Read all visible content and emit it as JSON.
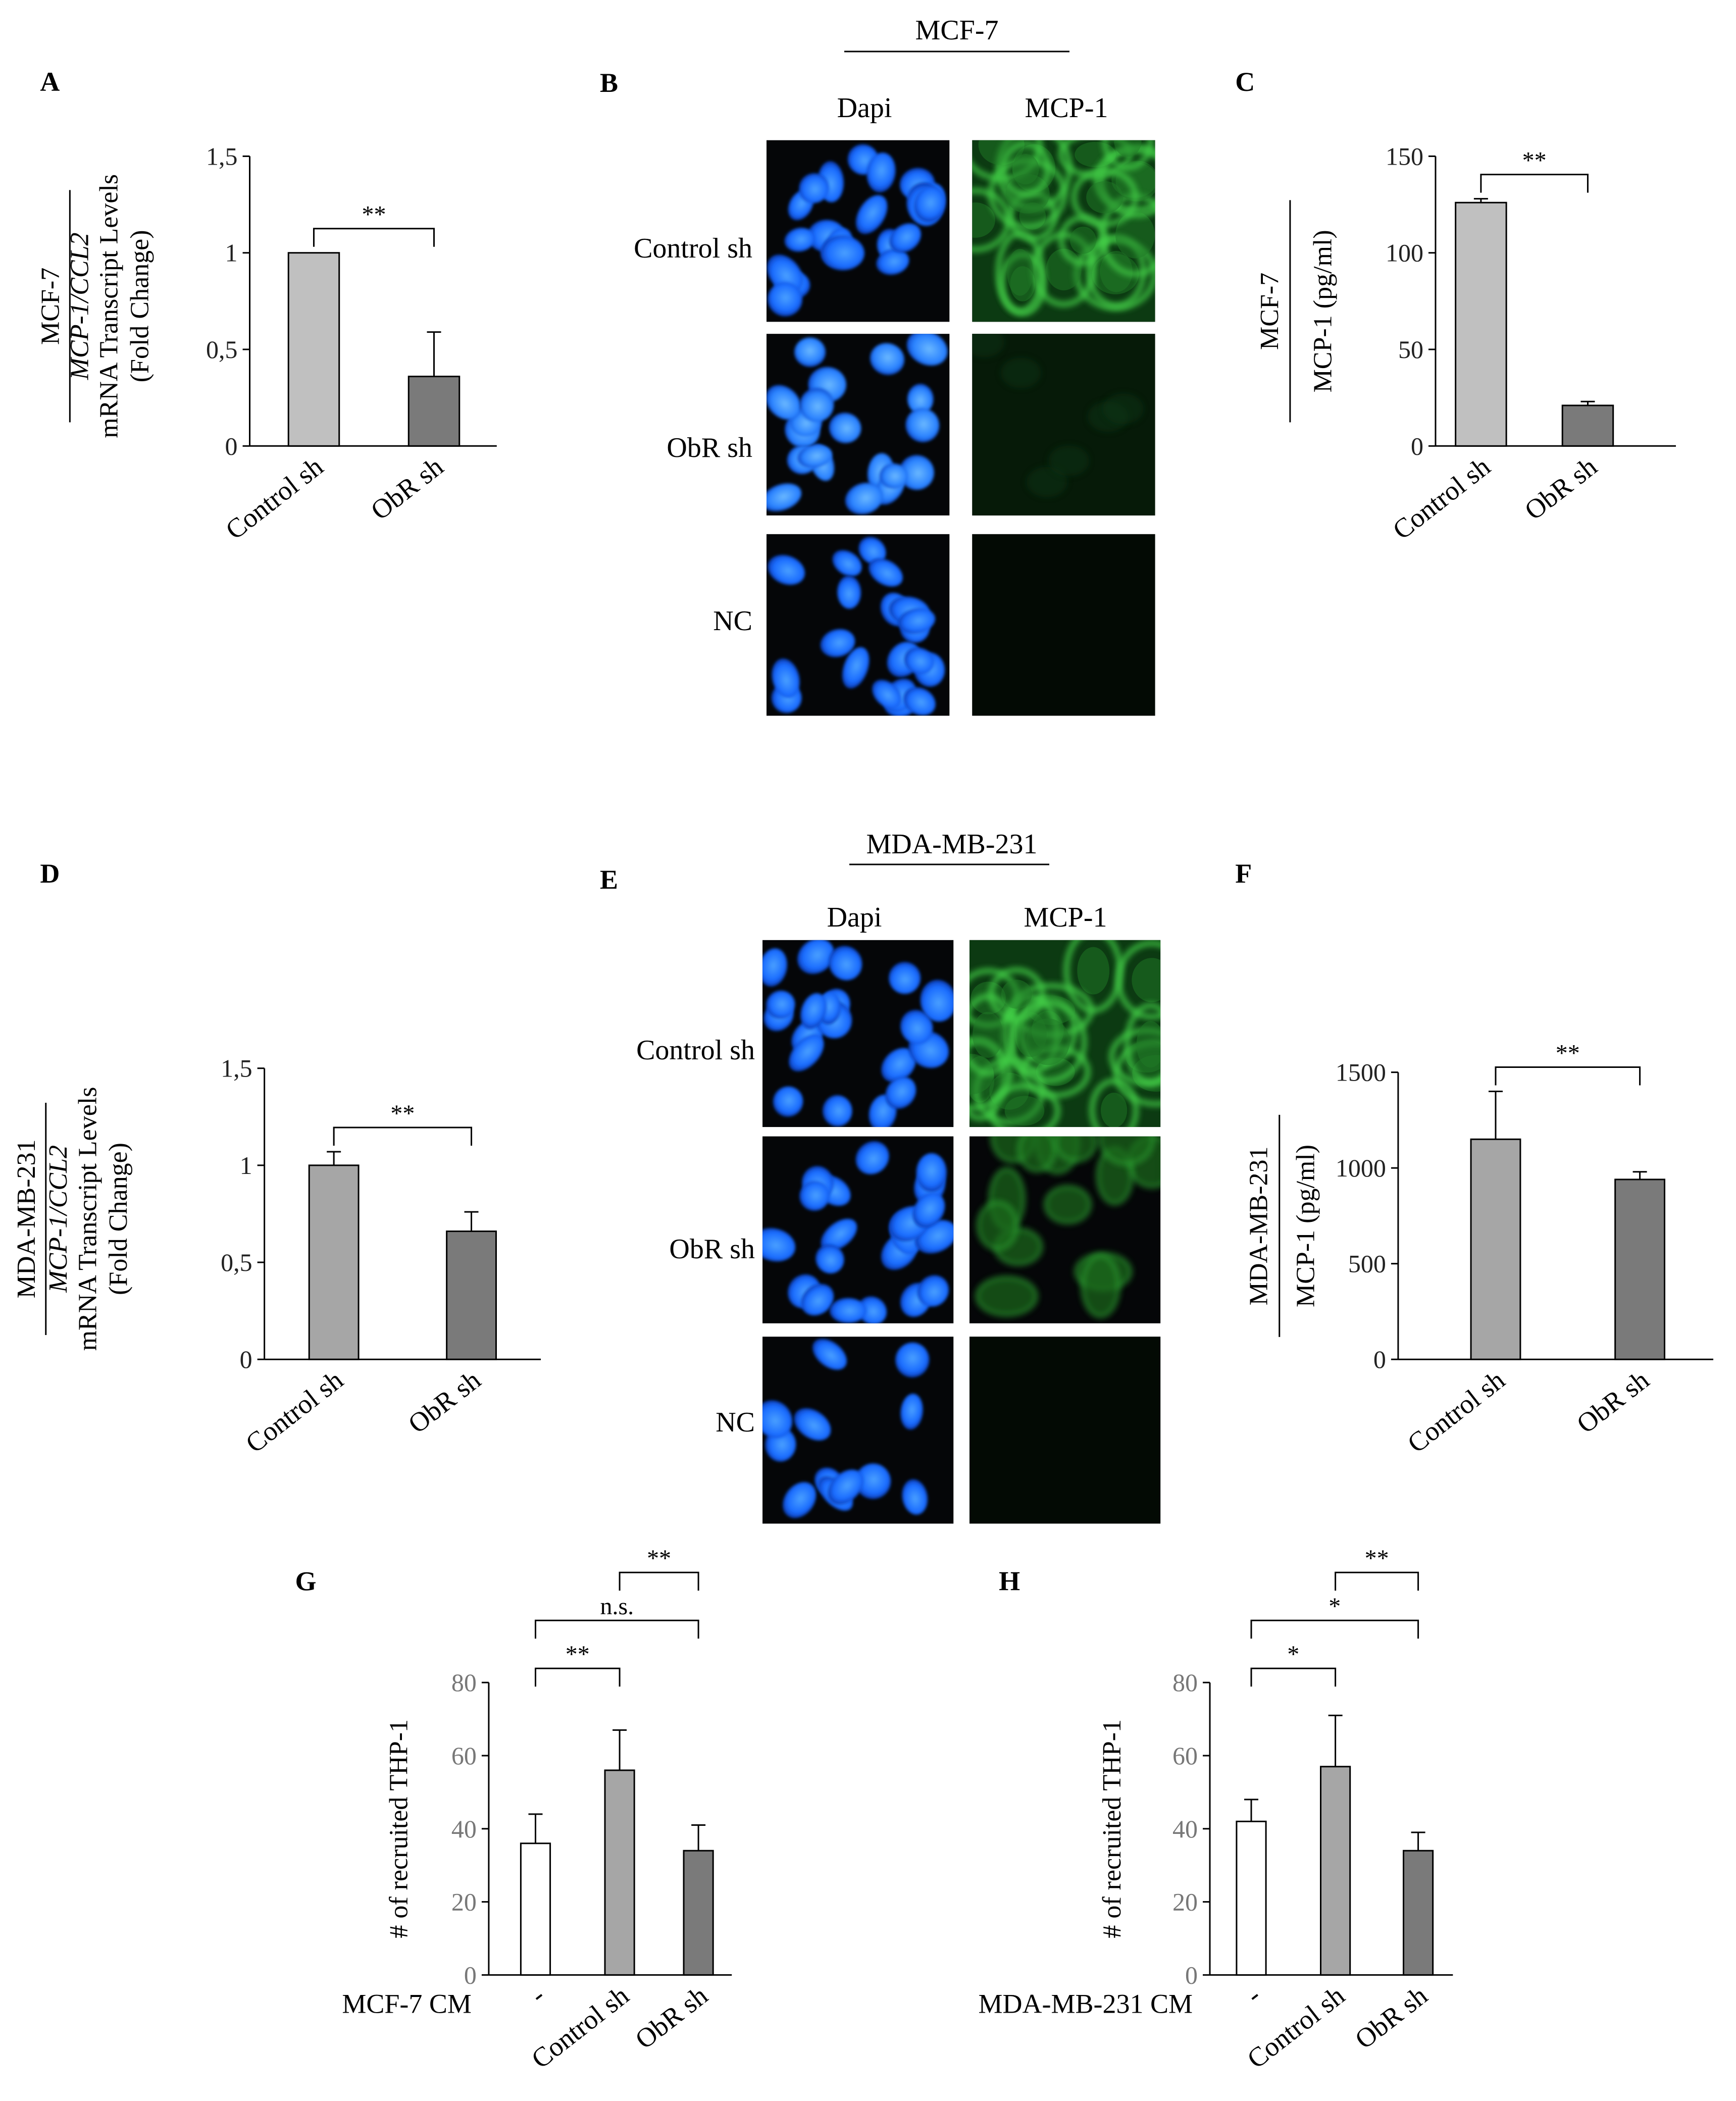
{
  "figure": {
    "mcf7_header": "MCF-7",
    "mda_header": "MDA-MB-231",
    "dapi_label": "Dapi",
    "mcp1_label": "MCP-1",
    "row_labels": [
      "Control sh",
      "ObR sh",
      "NC"
    ],
    "colors": {
      "light_gray": "#c0c0c0",
      "mid_gray": "#a6a6a6",
      "dark_gray": "#7a7a7a",
      "white": "#ffffff",
      "dapi_blue": "#1a6cff",
      "mcp1_green": "#3cc83c"
    }
  },
  "chart_data": [
    {
      "id": "A",
      "type": "bar",
      "letter": "A",
      "categories": [
        "Control sh",
        "ObR sh"
      ],
      "values": [
        1.0,
        0.36
      ],
      "errors": [
        0.0,
        0.23
      ],
      "ylim": [
        0,
        1.5
      ],
      "yticks": [
        "0",
        "0,5",
        "1",
        "1,5"
      ],
      "ylabel_top": "MCF-7",
      "ylabel_mid": "MCP-1/CCL2",
      "ylabel_l3": "mRNA Transcript Levels",
      "ylabel_l4": "(Fold Change)",
      "bar_colors": [
        "#c0c0c0",
        "#7a7a7a"
      ],
      "significance": [
        {
          "from": 0,
          "to": 1,
          "label": "**"
        }
      ]
    },
    {
      "id": "C",
      "type": "bar",
      "letter": "C",
      "categories": [
        "Control sh",
        "ObR sh"
      ],
      "values": [
        126,
        21
      ],
      "errors": [
        2,
        2
      ],
      "ylim": [
        0,
        150
      ],
      "yticks": [
        "0",
        "50",
        "100",
        "150"
      ],
      "ylabel_top": "MCF-7",
      "ylabel_bottom": "MCP-1 (pg/ml)",
      "bar_colors": [
        "#c0c0c0",
        "#7a7a7a"
      ],
      "significance": [
        {
          "from": 0,
          "to": 1,
          "label": "**"
        }
      ]
    },
    {
      "id": "D",
      "type": "bar",
      "letter": "D",
      "categories": [
        "Control sh",
        "ObR sh"
      ],
      "values": [
        1.0,
        0.66
      ],
      "errors": [
        0.07,
        0.1
      ],
      "ylim": [
        0,
        1.5
      ],
      "yticks": [
        "0",
        "0,5",
        "1",
        "1,5"
      ],
      "ylabel_top": "MDA-MB-231",
      "ylabel_mid": "MCP-1/CCL2",
      "ylabel_l3": "mRNA Transcript Levels",
      "ylabel_l4": "(Fold Change)",
      "bar_colors": [
        "#a6a6a6",
        "#7a7a7a"
      ],
      "significance": [
        {
          "from": 0,
          "to": 1,
          "label": "**"
        }
      ]
    },
    {
      "id": "F",
      "type": "bar",
      "letter": "F",
      "categories": [
        "Control sh",
        "ObR sh"
      ],
      "values": [
        1150,
        940
      ],
      "errors": [
        250,
        40
      ],
      "ylim": [
        0,
        1500
      ],
      "yticks": [
        "0",
        "500",
        "1000",
        "1500"
      ],
      "ylabel_top": "MDA-MB-231",
      "ylabel_bottom": "MCP-1 (pg/ml)",
      "bar_colors": [
        "#a6a6a6",
        "#7a7a7a"
      ],
      "significance": [
        {
          "from": 0,
          "to": 1,
          "label": "**"
        }
      ]
    },
    {
      "id": "G",
      "type": "bar",
      "letter": "G",
      "categories": [
        "-",
        "Control sh",
        "ObR sh"
      ],
      "values": [
        36,
        56,
        34
      ],
      "errors": [
        8,
        11,
        7
      ],
      "ylim": [
        0,
        80
      ],
      "yticks": [
        "0",
        "20",
        "40",
        "60",
        "80"
      ],
      "ylabel_single": "# of recruited THP-1",
      "xgroup_label": "MCF-7 CM",
      "bar_colors": [
        "#ffffff",
        "#a6a6a6",
        "#7a7a7a"
      ],
      "significance": [
        {
          "from": 0,
          "to": 1,
          "label": "**",
          "level": 0
        },
        {
          "from": 0,
          "to": 2,
          "label": "n.s.",
          "level": 1
        },
        {
          "from": 1,
          "to": 2,
          "label": "**",
          "level": 2
        }
      ]
    },
    {
      "id": "H",
      "type": "bar",
      "letter": "H",
      "categories": [
        "-",
        "Control sh",
        "ObR sh"
      ],
      "values": [
        42,
        57,
        34
      ],
      "errors": [
        6,
        14,
        5
      ],
      "ylim": [
        0,
        80
      ],
      "yticks": [
        "0",
        "20",
        "40",
        "60",
        "80"
      ],
      "ylabel_single": "# of recruited THP-1",
      "xgroup_label": "MDA-MB-231 CM",
      "bar_colors": [
        "#ffffff",
        "#a6a6a6",
        "#7a7a7a"
      ],
      "significance": [
        {
          "from": 0,
          "to": 1,
          "label": "*",
          "level": 0
        },
        {
          "from": 0,
          "to": 2,
          "label": "*",
          "level": 1
        },
        {
          "from": 1,
          "to": 2,
          "label": "**",
          "level": 2
        }
      ]
    }
  ],
  "micrographs": {
    "B": {
      "letter": "B"
    },
    "E": {
      "letter": "E"
    }
  }
}
